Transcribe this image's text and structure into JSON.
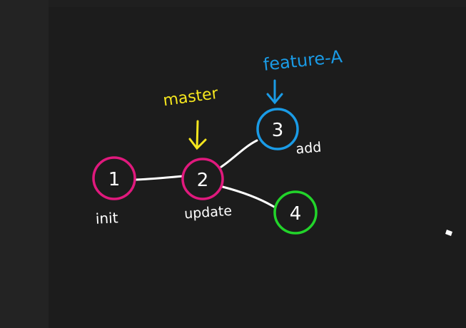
{
  "colors": {
    "background": "#1c1c1c",
    "edge": "#ffffff",
    "node1": "#e0197d",
    "node2": "#e0197d",
    "node3": "#1a9be6",
    "node4": "#22d42a",
    "master": "#f5e61e",
    "featureA": "#1a9be6"
  },
  "nodes": [
    {
      "id": "1",
      "label": "1",
      "caption": "init"
    },
    {
      "id": "2",
      "label": "2",
      "caption": "update"
    },
    {
      "id": "3",
      "label": "3",
      "caption": "add"
    },
    {
      "id": "4",
      "label": "4",
      "caption": ""
    }
  ],
  "pointers": {
    "master": "master",
    "feature": "feature-A"
  }
}
